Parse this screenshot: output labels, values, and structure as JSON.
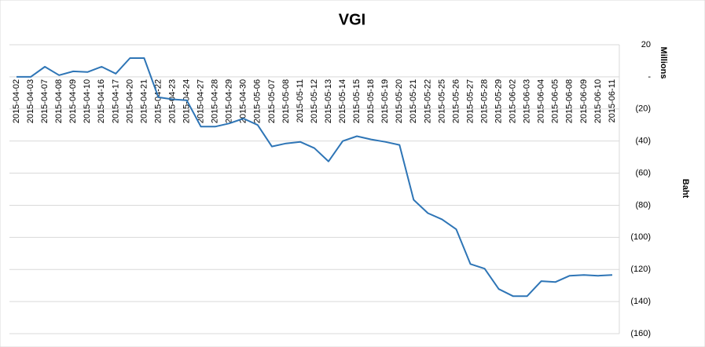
{
  "chart_data": {
    "type": "line",
    "title": "VGI",
    "y_label": "Baht",
    "y_unit_label": "Millions",
    "categories": [
      "2015-04-02",
      "2015-04-03",
      "2015-04-07",
      "2015-04-08",
      "2015-04-09",
      "2015-04-10",
      "2015-04-16",
      "2015-04-17",
      "2015-04-20",
      "2015-04-21",
      "2015-04-22",
      "2015-04-23",
      "2015-04-24",
      "2015-04-27",
      "2015-04-28",
      "2015-04-29",
      "2015-04-30",
      "2015-05-06",
      "2015-05-07",
      "2015-05-08",
      "2015-05-11",
      "2015-05-12",
      "2015-05-13",
      "2015-05-14",
      "2015-05-15",
      "2015-05-18",
      "2015-05-19",
      "2015-05-20",
      "2015-05-21",
      "2015-05-22",
      "2015-05-25",
      "2015-05-26",
      "2015-05-27",
      "2015-05-28",
      "2015-05-29",
      "2015-06-02",
      "2015-06-03",
      "2015-06-04",
      "2015-06-05",
      "2015-06-08",
      "2015-06-09",
      "2015-06-10",
      "2015-06-11"
    ],
    "values": [
      0,
      0,
      6.3,
      1,
      3.4,
      3,
      6.3,
      2,
      11.7,
      11.7,
      -12.7,
      -14,
      -14.6,
      -31,
      -31,
      -29,
      -26,
      -30,
      -43.4,
      -41.5,
      -40.5,
      -44.4,
      -52.7,
      -40,
      -37,
      -39,
      -40.5,
      -42.4,
      -76.6,
      -84.9,
      -88.8,
      -95,
      -116.6,
      -119.5,
      -132.2,
      -136.6,
      -136.6,
      -127.3,
      -127.8,
      -123.9,
      -123.4,
      -123.9,
      -123.4
    ],
    "color": "#2e75b6",
    "ylim": [
      -160,
      20
    ],
    "yticks": [
      20,
      {
        "value": 0,
        "label": "-"
      },
      {
        "value": -20,
        "label": "(20)"
      },
      {
        "value": -40,
        "label": "(40)"
      },
      {
        "value": -60,
        "label": "(60)"
      },
      {
        "value": -80,
        "label": "(80)"
      },
      {
        "value": -100,
        "label": "(100)"
      },
      {
        "value": -120,
        "label": "(120)"
      },
      {
        "value": -140,
        "label": "(140)"
      },
      {
        "value": -160,
        "label": "(160)"
      }
    ],
    "grid": true
  }
}
